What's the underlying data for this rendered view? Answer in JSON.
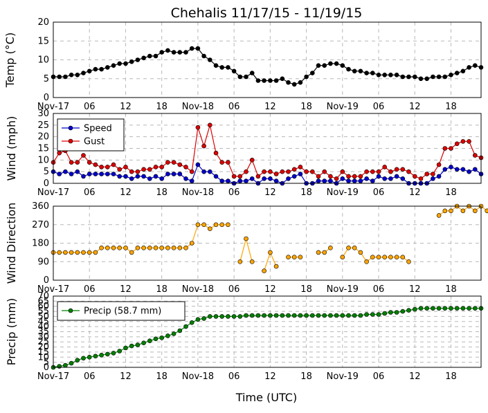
{
  "chart_data": {
    "type": "line",
    "title": "Chehalis 11/17/15 - 11/19/15",
    "xlabel": "Time (UTC)",
    "x_tick_labels": [
      "Nov-17",
      "06",
      "12",
      "18",
      "Nov-18",
      "06",
      "12",
      "18",
      "Nov-19",
      "06",
      "12",
      "18"
    ],
    "x_start": "2015-11-17T00:00Z",
    "x_step_hours": 1,
    "x_range_hours": [
      0,
      71
    ],
    "panels": [
      {
        "id": "temp",
        "ylabel": "Temp (°C)",
        "ylim": [
          0,
          20
        ],
        "yticks": [
          0,
          5,
          10,
          15,
          20
        ],
        "series": [
          {
            "name": "",
            "color": "#000000",
            "values": [
              5.5,
              5.5,
              5.5,
              6,
              6,
              6.5,
              7,
              7.5,
              7.5,
              8,
              8.5,
              9,
              9,
              9.5,
              10,
              10.5,
              11,
              11,
              12,
              12.5,
              12,
              12,
              12,
              13,
              13,
              11,
              10,
              8.5,
              8,
              8,
              7,
              5.5,
              5.5,
              6.5,
              4.5,
              4.5,
              4.5,
              4.5,
              5,
              4,
              3.5,
              4,
              5.5,
              6.5,
              8.5,
              8.5,
              9,
              9,
              8.5,
              7.5,
              7,
              7,
              6.5,
              6.5,
              6,
              6,
              6,
              6,
              5.5,
              5.5,
              5.5,
              5,
              5,
              5.5,
              5.5,
              5.5,
              6,
              6.5,
              7,
              8,
              8.5,
              8
            ]
          }
        ]
      },
      {
        "id": "wind",
        "ylabel": "Wind (mph)",
        "ylim": [
          0,
          30
        ],
        "yticks": [
          0,
          5,
          10,
          15,
          20,
          25,
          30
        ],
        "legend_position": "upper-left",
        "series": [
          {
            "name": "Speed",
            "color": "#0000cc",
            "values": [
              5,
              4,
              5,
              4,
              5,
              3,
              4,
              4,
              4,
              4,
              4,
              3,
              3,
              2,
              3,
              3,
              2,
              3,
              2,
              4,
              4,
              4,
              2,
              1,
              8,
              5,
              5,
              3,
              1,
              1,
              0,
              1,
              1,
              2,
              0,
              2,
              2,
              1,
              0,
              2,
              3,
              4,
              0,
              0,
              1,
              1,
              1,
              0,
              2,
              1,
              1,
              1,
              2,
              1,
              3,
              2,
              2,
              3,
              2,
              0,
              0,
              0,
              0,
              2,
              3,
              6,
              7,
              6,
              6,
              5,
              6,
              4
            ]
          },
          {
            "name": "Gust",
            "color": "#dd0000",
            "values": [
              9,
              13,
              14,
              9,
              9,
              12,
              9,
              8,
              7,
              7,
              8,
              6,
              7,
              5,
              5,
              6,
              6,
              7,
              7,
              9,
              9,
              8,
              7,
              5,
              24,
              16,
              25,
              13,
              9,
              9,
              3,
              3,
              5,
              10,
              3,
              5,
              5,
              4,
              5,
              5,
              6,
              7,
              5,
              5,
              3,
              5,
              3,
              2,
              5,
              3,
              3,
              3,
              5,
              5,
              5,
              7,
              5,
              6,
              6,
              5,
              3,
              2,
              4,
              4,
              8,
              15,
              15,
              17,
              18,
              18,
              12,
              11
            ]
          }
        ]
      },
      {
        "id": "wind_direction",
        "ylabel": "Wind Direction",
        "ylim": [
          0,
          360
        ],
        "yticks": [
          0,
          90,
          180,
          270,
          360
        ],
        "series": [
          {
            "name": "",
            "color": "#ffa500",
            "values": [
              135,
              135,
              135,
              135,
              135,
              135,
              135,
              135,
              157,
              157,
              157,
              157,
              157,
              135,
              157,
              157,
              157,
              157,
              157,
              157,
              157,
              157,
              157,
              180,
              270,
              270,
              250,
              270,
              270,
              270,
              null,
              90,
              202,
              90,
              null,
              45,
              135,
              67,
              null,
              112,
              112,
              112,
              null,
              null,
              135,
              135,
              157,
              null,
              112,
              157,
              157,
              135,
              90,
              112,
              112,
              112,
              112,
              112,
              112,
              90,
              null,
              null,
              null,
              null,
              315,
              337,
              337,
              360,
              337,
              360,
              337,
              360,
              337
            ]
          }
        ]
      },
      {
        "id": "precip",
        "ylabel": "Precip (mm)",
        "ylim": [
          0,
          70
        ],
        "yticks": [
          0,
          5,
          10,
          15,
          20,
          25,
          30,
          35,
          40,
          45,
          50,
          55,
          60,
          65,
          70
        ],
        "legend_position": "upper-left",
        "series": [
          {
            "name": "Precip (58.7 mm)",
            "color": "#008000",
            "values": [
              0,
              1,
              2,
              4,
              7,
              9,
              10,
              11,
              12,
              13,
              14,
              16,
              19,
              21,
              22,
              24,
              26,
              28,
              29,
              31,
              33,
              36,
              40,
              44,
              47,
              48,
              50,
              50,
              50,
              50,
              50,
              50,
              51,
              51,
              51,
              51,
              51,
              51,
              51,
              51,
              51,
              51,
              51,
              51,
              51,
              51,
              51,
              51,
              51,
              51,
              51,
              51,
              52,
              52,
              52,
              53,
              54,
              54,
              55,
              56,
              57,
              58,
              58,
              58,
              58,
              58,
              58,
              58,
              58,
              58,
              58,
              58
            ]
          }
        ]
      }
    ]
  }
}
